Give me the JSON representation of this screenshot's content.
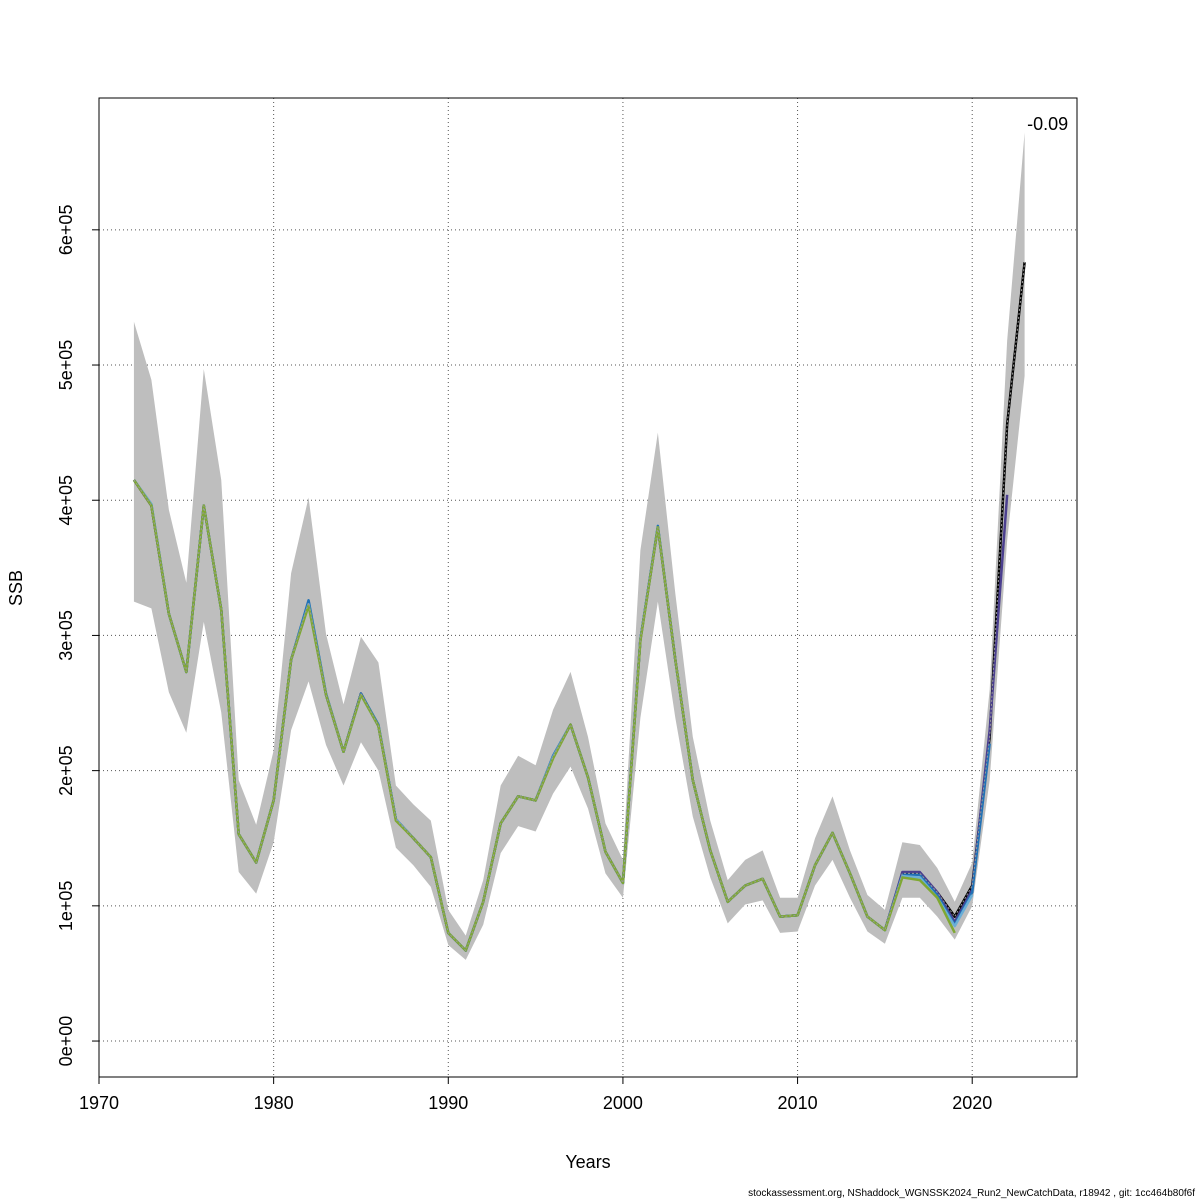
{
  "chart_data": {
    "type": "line",
    "xlabel": "Years",
    "ylabel": "SSB",
    "annotation": "-0.09",
    "footer": "stockassessment.org, NShaddock_WGNSSK2024_Run2_NewCatchData, r18942 , git: 1cc464b80f6f",
    "grid": true,
    "xlim": [
      1970,
      2026
    ],
    "ylim": [
      -26600,
      697500
    ],
    "xticks": [
      1970,
      1980,
      1990,
      2000,
      2010,
      2020
    ],
    "yticks": [
      {
        "value": 0,
        "label": "0e+00"
      },
      {
        "value": 100000,
        "label": "1e+05"
      },
      {
        "value": 200000,
        "label": "2e+05"
      },
      {
        "value": 300000,
        "label": "3e+05"
      },
      {
        "value": 400000,
        "label": "4e+05"
      },
      {
        "value": 500000,
        "label": "5e+05"
      },
      {
        "value": 600000,
        "label": "6e+05"
      }
    ],
    "x": [
      1972,
      1973,
      1974,
      1975,
      1976,
      1977,
      1978,
      1979,
      1980,
      1981,
      1982,
      1983,
      1984,
      1985,
      1986,
      1987,
      1988,
      1989,
      1990,
      1991,
      1992,
      1993,
      1994,
      1995,
      1996,
      1997,
      1998,
      1999,
      2000,
      2001,
      2002,
      2003,
      2004,
      2005,
      2006,
      2007,
      2008,
      2009,
      2010,
      2011,
      2012,
      2013,
      2014,
      2015,
      2016,
      2017,
      2018,
      2019,
      2020,
      2021,
      2022,
      2023
    ],
    "band": {
      "color": "#bebebe",
      "upper": [
        532000,
        489000,
        393000,
        339000,
        497000,
        415000,
        193000,
        160000,
        215000,
        346000,
        402000,
        301000,
        249000,
        299000,
        280000,
        189000,
        175000,
        163000,
        97000,
        78000,
        119000,
        189000,
        211000,
        204000,
        245000,
        273000,
        225000,
        161000,
        134000,
        363000,
        450000,
        331000,
        225000,
        163000,
        119000,
        134000,
        141000,
        106000,
        106000,
        150000,
        181000,
        141000,
        108000,
        97000,
        147000,
        145000,
        128000,
        103000,
        132000,
        260000,
        518000,
        672000
      ],
      "lower": [
        325000,
        320000,
        258000,
        228000,
        310000,
        243000,
        125000,
        109000,
        147000,
        230000,
        266000,
        219000,
        189000,
        221000,
        200000,
        143000,
        130000,
        114000,
        71000,
        60000,
        86000,
        139000,
        159000,
        155000,
        183000,
        203000,
        172000,
        124000,
        106000,
        239000,
        325000,
        239000,
        166000,
        121000,
        87000,
        101000,
        104000,
        80000,
        81000,
        115000,
        134000,
        106000,
        81000,
        72000,
        106000,
        106000,
        92000,
        75000,
        100000,
        193000,
        370000,
        492000
      ]
    },
    "series": [
      {
        "color": "#000000",
        "values": [
          415000,
          396000,
          316000,
          273000,
          396000,
          319000,
          153000,
          132000,
          178000,
          282000,
          324000,
          256000,
          214000,
          257000,
          233000,
          164000,
          150000,
          136000,
          80000,
          67000,
          103000,
          161000,
          181000,
          178000,
          210000,
          234000,
          195000,
          140000,
          117000,
          297000,
          380000,
          282000,
          193000,
          141000,
          103000,
          115000,
          120000,
          92000,
          93000,
          130000,
          154000,
          124000,
          92000,
          82000,
          124000,
          124000,
          110000,
          92000,
          115000,
          225000,
          456000,
          576000
        ]
      },
      {
        "color": "#4b3f8f",
        "values": [
          415000,
          396000,
          316000,
          273000,
          396000,
          319000,
          153000,
          132000,
          178000,
          282000,
          325000,
          256000,
          214000,
          257000,
          233000,
          164000,
          150000,
          136000,
          80000,
          67000,
          103000,
          161000,
          181000,
          178000,
          210000,
          234000,
          195000,
          140000,
          117000,
          297000,
          380000,
          282000,
          193000,
          141000,
          103000,
          115000,
          120000,
          92000,
          93000,
          130000,
          154000,
          124000,
          92000,
          82000,
          125000,
          125000,
          110000,
          88000,
          112000,
          230000,
          404000,
          null
        ]
      },
      {
        "color": "#2171b5",
        "values": [
          415000,
          397000,
          316000,
          273000,
          396000,
          319000,
          153000,
          132000,
          178000,
          282000,
          326000,
          257000,
          214000,
          257000,
          234000,
          164000,
          150000,
          136000,
          80000,
          67000,
          103000,
          161000,
          181000,
          178000,
          211000,
          234000,
          195000,
          140000,
          117000,
          297000,
          381000,
          282000,
          193000,
          141000,
          103000,
          115000,
          120000,
          92000,
          93000,
          130000,
          154000,
          124000,
          92000,
          82000,
          123000,
          123000,
          108000,
          86000,
          110000,
          220000,
          null,
          null
        ]
      },
      {
        "color": "#6baed6",
        "values": [
          415000,
          397000,
          316000,
          273000,
          396000,
          319000,
          153000,
          132000,
          178000,
          282000,
          323000,
          256000,
          214000,
          256000,
          233000,
          164000,
          150000,
          136000,
          80000,
          67000,
          103000,
          161000,
          181000,
          178000,
          210000,
          234000,
          195000,
          140000,
          117000,
          297000,
          380000,
          282000,
          193000,
          141000,
          103000,
          115000,
          120000,
          92000,
          93000,
          130000,
          154000,
          124000,
          92000,
          82000,
          122000,
          121000,
          106000,
          85000,
          108000,
          null,
          null,
          null
        ]
      },
      {
        "color": "#7fa832",
        "values": [
          415000,
          396000,
          316000,
          273000,
          396000,
          319000,
          153000,
          132000,
          178000,
          282000,
          322000,
          256000,
          214000,
          256000,
          233000,
          163000,
          150000,
          136000,
          80000,
          67000,
          103000,
          161000,
          181000,
          178000,
          209000,
          234000,
          195000,
          140000,
          117000,
          296000,
          380000,
          282000,
          193000,
          141000,
          103000,
          115000,
          120000,
          92000,
          93000,
          130000,
          154000,
          124000,
          92000,
          82000,
          121000,
          119000,
          106000,
          80000,
          null,
          null,
          null,
          null
        ]
      }
    ]
  }
}
